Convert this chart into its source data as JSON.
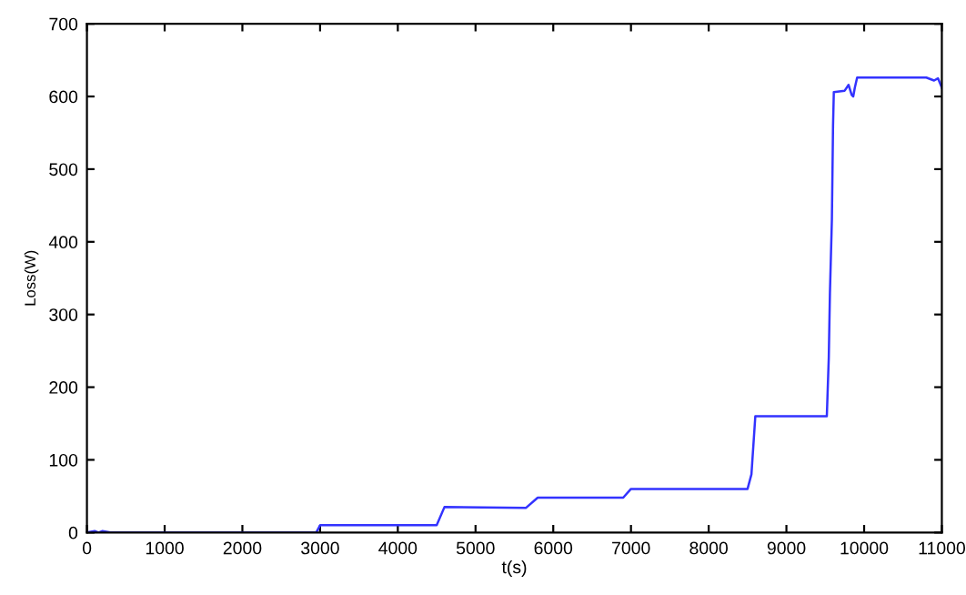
{
  "chart_data": {
    "type": "line",
    "xlabel": "t(s)",
    "ylabel": "Loss(W)",
    "series": [
      {
        "color": "#3333ff",
        "x": [
          0,
          100,
          150,
          200,
          300,
          400,
          2950,
          3000,
          4500,
          4600,
          5650,
          5800,
          6900,
          7000,
          8500,
          8550,
          8600,
          9520,
          9545,
          9560,
          9585,
          9600,
          9610,
          9750,
          9800,
          9840,
          9860,
          9880,
          9910,
          10800,
          10900,
          10950,
          11000
        ],
        "values": [
          0,
          2,
          0,
          2,
          0,
          0,
          0,
          10,
          10,
          35,
          34,
          48,
          48,
          60,
          60,
          80,
          160,
          160,
          240,
          330,
          430,
          560,
          606,
          608,
          616,
          602,
          600,
          612,
          626,
          626,
          622,
          625,
          612
        ]
      }
    ],
    "xlim": [
      0,
      11000
    ],
    "xticks": [
      0,
      1000,
      2000,
      3000,
      4000,
      5000,
      6000,
      7000,
      8000,
      9000,
      10000,
      11000
    ],
    "ylim": [
      0,
      700
    ],
    "yticks": [
      0,
      100,
      200,
      300,
      400,
      500,
      600,
      700
    ],
    "grid": false,
    "legend": false
  }
}
